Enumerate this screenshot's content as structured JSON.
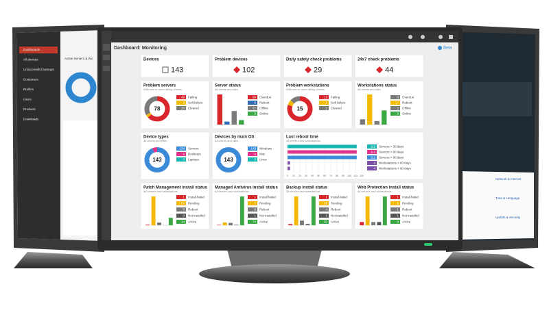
{
  "header": {
    "title": "Dashboard: Monitoring",
    "badge": "Beta"
  },
  "left_screen": {
    "panel_title": "Active Servers & Wo",
    "menu": [
      "Dashboards",
      "All devices",
      "Unsuccessful backups",
      "Customers",
      "Profiles",
      "Users",
      "Products",
      "Downloads"
    ]
  },
  "right_screen": {
    "items": [
      "Network & Internet",
      "Time & Language",
      "Update & Security"
    ]
  },
  "tiles": [
    {
      "title": "Devices",
      "value": 143
    },
    {
      "title": "Problem devices",
      "value": 102
    },
    {
      "title": "Daily safety check problems",
      "value": 29
    },
    {
      "title": "24x7 check problems",
      "value": 44
    },
    {
      "title": "Problem servers",
      "subtitle": "With one or more failing checks",
      "chart": "donut",
      "center": 78,
      "items": [
        {
          "label": "Failing",
          "value": 49,
          "color": "#d9262c"
        },
        {
          "label": "Soft failure",
          "value": 3,
          "color": "#f5b800"
        },
        {
          "label": "Cleared",
          "value": 26,
          "color": "#7a7a7a"
        }
      ]
    },
    {
      "title": "Server status",
      "subtitle": "All clients and sites",
      "chart": "bar",
      "items": [
        {
          "label": "Overdue",
          "value": 60,
          "color": "#d9262c"
        },
        {
          "label": "Reboot",
          "value": 6,
          "color": "#2f6db5"
        },
        {
          "label": "Offline",
          "value": 27,
          "color": "#7a7a7a"
        },
        {
          "label": "Online",
          "value": 9,
          "color": "#3aa845"
        }
      ]
    },
    {
      "title": "Problem workstations",
      "subtitle": "With one or more failing checks",
      "chart": "donut",
      "center": 15,
      "items": [
        {
          "label": "Failing",
          "value": 12,
          "color": "#d9262c"
        },
        {
          "label": "Soft failure",
          "value": 1,
          "color": "#f5b800"
        },
        {
          "label": "Cleared",
          "value": 2,
          "color": "#7a7a7a"
        }
      ]
    },
    {
      "title": "Workstations status",
      "subtitle": "All clients and sites",
      "chart": "bar",
      "items": [
        {
          "label": "Overdue",
          "value": 3,
          "color": "#7a7a7a"
        },
        {
          "label": "Reboot",
          "value": 17,
          "color": "#f5b800"
        },
        {
          "label": "Offline",
          "value": 2,
          "color": "#7a7a7a"
        },
        {
          "label": "Online",
          "value": 8,
          "color": "#3aa845"
        }
      ]
    },
    {
      "title": "Device types",
      "subtitle": "All clients and sites",
      "chart": "donut",
      "center": 143,
      "items": [
        {
          "label": "Servers",
          "value": 134,
          "color": "#3b8ad8"
        },
        {
          "label": "Desktops",
          "value": 9,
          "color": "#e0338a"
        },
        {
          "label": "Laptops",
          "value": 0,
          "color": "#19b5b0"
        }
      ]
    },
    {
      "title": "Devices by main OS",
      "subtitle": "All clients and sites",
      "chart": "donut",
      "center": 143,
      "items": [
        {
          "label": "Windows",
          "value": 143,
          "color": "#3b8ad8"
        },
        {
          "label": "Mac",
          "value": 0,
          "color": "#e0338a"
        },
        {
          "label": "Linux",
          "value": 0,
          "color": "#19b5b0"
        }
      ]
    },
    {
      "title": "Last reboot time",
      "subtitle": "All servers and workstations",
      "chart": "hbar",
      "xlim": [
        0,
        120
      ],
      "xticks": [
        0,
        10,
        20,
        30,
        40,
        50,
        60,
        70,
        80,
        90,
        100,
        110,
        120
      ],
      "items": [
        {
          "label": "Servers > 30 days",
          "value": 112,
          "color": "#19b5b0"
        },
        {
          "label": "Servers > 60 days",
          "value": 112,
          "color": "#e0338a"
        },
        {
          "label": "Servers > 90 days",
          "value": 112,
          "color": "#3b8ad8"
        },
        {
          "label": "Workstations > 60 days",
          "value": 4,
          "color": "#7b4fa8"
        },
        {
          "label": "Workstations > 90 days",
          "value": 4,
          "color": "#7b4fa8"
        }
      ]
    },
    {
      "title": "Patch Management install status",
      "subtitle": "All servers and workstations",
      "chart": "bar",
      "items": [
        {
          "label": "Install failed",
          "value": 1,
          "color": "#d9262c"
        },
        {
          "label": "Pending",
          "value": 54,
          "color": "#f5b800"
        },
        {
          "label": "Reboot",
          "value": 5,
          "color": "#7a7a7a"
        },
        {
          "label": "Not installed",
          "value": 0,
          "color": "#555555"
        },
        {
          "label": "Active",
          "value": 14,
          "color": "#3aa845"
        }
      ]
    },
    {
      "title": "Managed Antivirus install status",
      "subtitle": "All servers and workstations",
      "chart": "bar",
      "items": [
        {
          "label": "Install failed",
          "value": 1,
          "color": "#d9262c"
        },
        {
          "label": "Pending",
          "value": 7,
          "color": "#f5b800"
        },
        {
          "label": "Reboot",
          "value": 6,
          "color": "#7a7a7a"
        },
        {
          "label": "Not installed",
          "value": 1,
          "color": "#555555"
        },
        {
          "label": "Active",
          "value": 74,
          "color": "#3aa845"
        }
      ]
    },
    {
      "title": "Backup install status",
      "subtitle": "All servers and workstations",
      "chart": "bar",
      "items": [
        {
          "label": "Install failed",
          "value": 1,
          "color": "#d9262c"
        },
        {
          "label": "Pending",
          "value": 25,
          "color": "#f5b800"
        },
        {
          "label": "Reboot",
          "value": 4,
          "color": "#7a7a7a"
        },
        {
          "label": "Not installed",
          "value": 1,
          "color": "#555555"
        },
        {
          "label": "Active",
          "value": 25,
          "color": "#3aa845"
        }
      ]
    },
    {
      "title": "Web Protection install status",
      "subtitle": "All servers and workstations",
      "chart": "bar",
      "items": [
        {
          "label": "Install failed",
          "value": 1,
          "color": "#d9262c"
        },
        {
          "label": "Pending",
          "value": 9,
          "color": "#f5b800"
        },
        {
          "label": "Reboot",
          "value": 1,
          "color": "#7a7a7a"
        },
        {
          "label": "Not installed",
          "value": 1,
          "color": "#555555"
        },
        {
          "label": "Active",
          "value": 9,
          "color": "#3aa845"
        }
      ]
    }
  ]
}
